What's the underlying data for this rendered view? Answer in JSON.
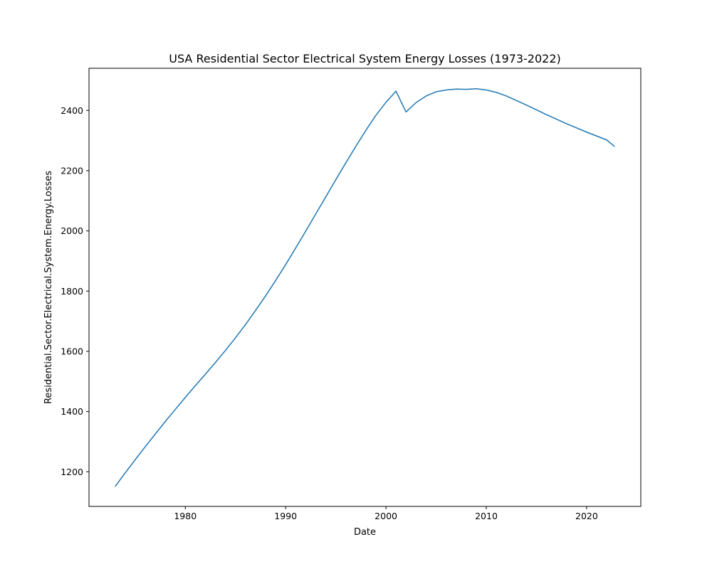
{
  "chart_data": {
    "type": "line",
    "title": "USA Residential Sector Electrical System Energy Losses (1973-2022)",
    "xlabel": "Date",
    "ylabel": "Residential.Sector.Electrical.System.Energy.Losses",
    "xlim": [
      1970.4,
      2025.4
    ],
    "ylim": [
      1085,
      2540
    ],
    "x_ticks": [
      1980,
      1990,
      2000,
      2010,
      2020
    ],
    "y_ticks": [
      1200,
      1400,
      1600,
      1800,
      2000,
      2200,
      2400
    ],
    "grid": false,
    "line_color": "#1f77b4",
    "series": [
      {
        "x": [
          1973.0,
          1974.0,
          1975.0,
          1976.0,
          1977.0,
          1978.0,
          1979.0,
          1980.0,
          1981.0,
          1982.0,
          1983.0,
          1984.0,
          1985.0,
          1986.0,
          1987.0,
          1988.0,
          1989.0,
          1990.0,
          1991.0,
          1992.0,
          1993.0,
          1994.0,
          1995.0,
          1996.0,
          1997.0,
          1998.0,
          1999.0,
          2000.0,
          2001.0,
          2002.0,
          2003.0,
          2004.0,
          2005.0,
          2006.0,
          2007.0,
          2008.0,
          2009.0,
          2010.0,
          2011.0,
          2012.0,
          2013.0,
          2014.0,
          2015.0,
          2016.0,
          2017.0,
          2018.0,
          2019.0,
          2020.0,
          2021.0,
          2022.0,
          2022.8
        ],
        "y": [
          1151,
          1196,
          1240,
          1283,
          1325,
          1367,
          1407,
          1447,
          1486,
          1524,
          1563,
          1603,
          1645,
          1689,
          1736,
          1784,
          1835,
          1888,
          1943,
          1999,
          2056,
          2113,
          2170,
          2226,
          2281,
          2334,
          2384,
          2427,
          2464,
          2395,
          2426,
          2448,
          2462,
          2468,
          2471,
          2470,
          2472,
          2468,
          2460,
          2448,
          2433,
          2418,
          2402,
          2386,
          2371,
          2356,
          2342,
          2328,
          2315,
          2302,
          2280
        ]
      }
    ]
  }
}
